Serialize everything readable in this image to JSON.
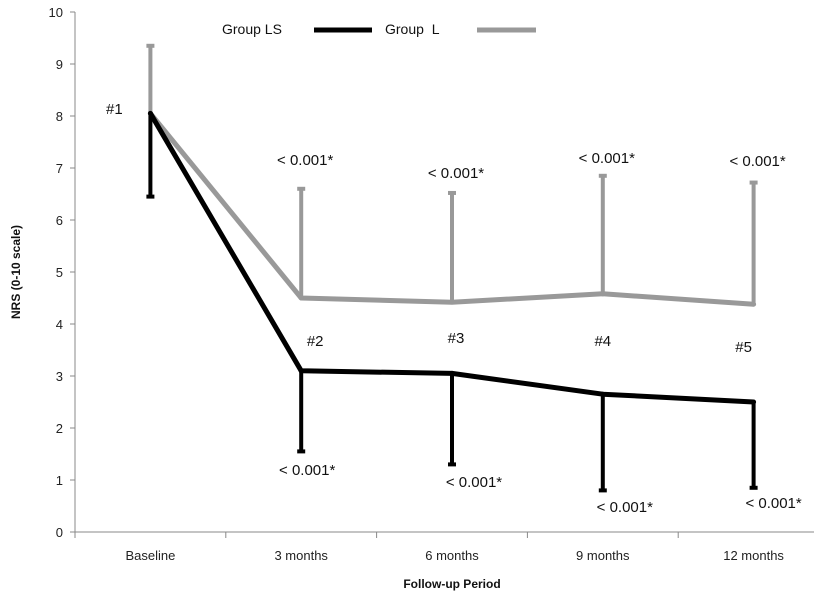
{
  "chart_data": {
    "type": "line",
    "title": "",
    "xlabel": "Follow-up Period",
    "ylabel": "NRS (0-10 scale)",
    "ylim": [
      0,
      10
    ],
    "yticks": [
      "0",
      "1",
      "2",
      "3",
      "4",
      "5",
      "6",
      "7",
      "8",
      "9",
      "10"
    ],
    "categories": [
      "Baseline",
      "3 months",
      "6 months",
      "9 months",
      "12 months"
    ],
    "legend_position": "top",
    "grid": false,
    "series": [
      {
        "name": "Group LS",
        "color": "#000000",
        "values": [
          8.05,
          3.1,
          3.05,
          2.65,
          2.5
        ],
        "error_direction": "down",
        "error_ends": [
          6.45,
          1.55,
          1.3,
          0.8,
          0.85
        ]
      },
      {
        "name": "Group  L",
        "color": "#999999",
        "values": [
          8.05,
          4.5,
          4.42,
          4.58,
          4.38
        ],
        "error_direction": "up",
        "error_ends": [
          9.35,
          6.6,
          6.52,
          6.85,
          6.72
        ]
      }
    ],
    "marker_labels": [
      "#1",
      "#2",
      "#3",
      "#4",
      "#5"
    ],
    "p_labels_upper": [
      "< 0.001*",
      "< 0.001*",
      "< 0.001*",
      "< 0.001*"
    ],
    "p_labels_lower": [
      "< 0.001*",
      "< 0.001*",
      "< 0.001*",
      "< 0.001*"
    ]
  }
}
